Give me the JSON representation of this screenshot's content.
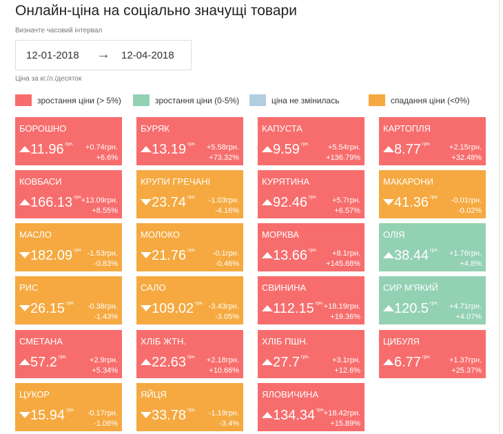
{
  "header": {
    "title": "Онлайн-ціна на соціально значущі товари",
    "hint": "Визначте часовий інтервал",
    "date_from": "12-01-2018",
    "date_to": "12-04-2018",
    "unit_note": "Ціна за кг./л./десяток"
  },
  "legend": [
    {
      "label": "зростання ціни (> 5%)",
      "color": "#f76d6d"
    },
    {
      "label": "зростання ціни (0-5%)",
      "color": "#93d1b3"
    },
    {
      "label": "ціна не змінилась",
      "color": "#b3cde0"
    },
    {
      "label": "спадання ціни (<0%)",
      "color": "#f5a940"
    }
  ],
  "currency": "грн.",
  "tiles": [
    {
      "name": "БОРОШНО",
      "price": "11.96",
      "change": "+0.74грн.",
      "percent": "+6.6%",
      "color": "#f76d6d"
    },
    {
      "name": "БУРЯК",
      "price": "13.19",
      "change": "+5.58грн.",
      "percent": "+73.32%",
      "color": "#f76d6d"
    },
    {
      "name": "КАПУСТА",
      "price": "9.59",
      "change": "+5.54грн.",
      "percent": "+136.79%",
      "color": "#f76d6d"
    },
    {
      "name": "КАРТОПЛЯ",
      "price": "8.77",
      "change": "+2.15грн.",
      "percent": "+32.48%",
      "color": "#f76d6d"
    },
    {
      "name": "КОВБАСИ",
      "price": "166.13",
      "change": "+13.09грн.",
      "percent": "+8.55%",
      "color": "#f76d6d"
    },
    {
      "name": "КРУПИ ГРЕЧАНІ",
      "price": "23.74",
      "change": "-1.03грн.",
      "percent": "-4.16%",
      "color": "#f5a940"
    },
    {
      "name": "КУРЯТИНА",
      "price": "92.46",
      "change": "+5.7грн.",
      "percent": "+6.57%",
      "color": "#f76d6d"
    },
    {
      "name": "МАКАРОНИ",
      "price": "41.36",
      "change": "-0.01грн.",
      "percent": "-0.02%",
      "color": "#f5a940"
    },
    {
      "name": "МАСЛО",
      "price": "182.09",
      "change": "-1.53грн.",
      "percent": "-0.83%",
      "color": "#f5a940"
    },
    {
      "name": "МОЛОКО",
      "price": "21.76",
      "change": "-0.1грн.",
      "percent": "-0.46%",
      "color": "#f5a940"
    },
    {
      "name": "МОРКВА",
      "price": "13.66",
      "change": "+8.1грн.",
      "percent": "+145.68%",
      "color": "#f76d6d"
    },
    {
      "name": "ОЛІЯ",
      "price": "38.44",
      "change": "+1.76грн.",
      "percent": "+4.8%",
      "color": "#93d1b3"
    },
    {
      "name": "РИС",
      "price": "26.15",
      "change": "-0.38грн.",
      "percent": "-1.43%",
      "color": "#f5a940"
    },
    {
      "name": "САЛО",
      "price": "109.02",
      "change": "-3.43грн.",
      "percent": "-3.05%",
      "color": "#f5a940"
    },
    {
      "name": "СВИНИНА",
      "price": "112.15",
      "change": "+18.19грн.",
      "percent": "+19.36%",
      "color": "#f76d6d"
    },
    {
      "name": "СИР М'ЯКИЙ",
      "price": "120.5",
      "change": "+4.71грн.",
      "percent": "+4.07%",
      "color": "#93d1b3"
    },
    {
      "name": "СМЕТАНА",
      "price": "57.2",
      "change": "+2.9грн.",
      "percent": "+5.34%",
      "color": "#f76d6d"
    },
    {
      "name": "ХЛІБ ЖТН.",
      "price": "22.63",
      "change": "+2.18грн.",
      "percent": "+10.66%",
      "color": "#f76d6d"
    },
    {
      "name": "ХЛІБ ПШН.",
      "price": "27.7",
      "change": "+3.1грн.",
      "percent": "+12.6%",
      "color": "#f76d6d"
    },
    {
      "name": "ЦИБУЛЯ",
      "price": "6.77",
      "change": "+1.37грн.",
      "percent": "+25.37%",
      "color": "#f76d6d"
    },
    {
      "name": "ЦУКОР",
      "price": "15.94",
      "change": "-0.17грн.",
      "percent": "-1.06%",
      "color": "#f5a940"
    },
    {
      "name": "ЯЙЦЯ",
      "price": "33.78",
      "change": "-1.19грн.",
      "percent": "-3.4%",
      "color": "#f5a940"
    },
    {
      "name": "ЯЛОВИЧИНА",
      "price": "134.34",
      "change": "+18.42грн.",
      "percent": "+15.89%",
      "color": "#f76d6d"
    }
  ]
}
